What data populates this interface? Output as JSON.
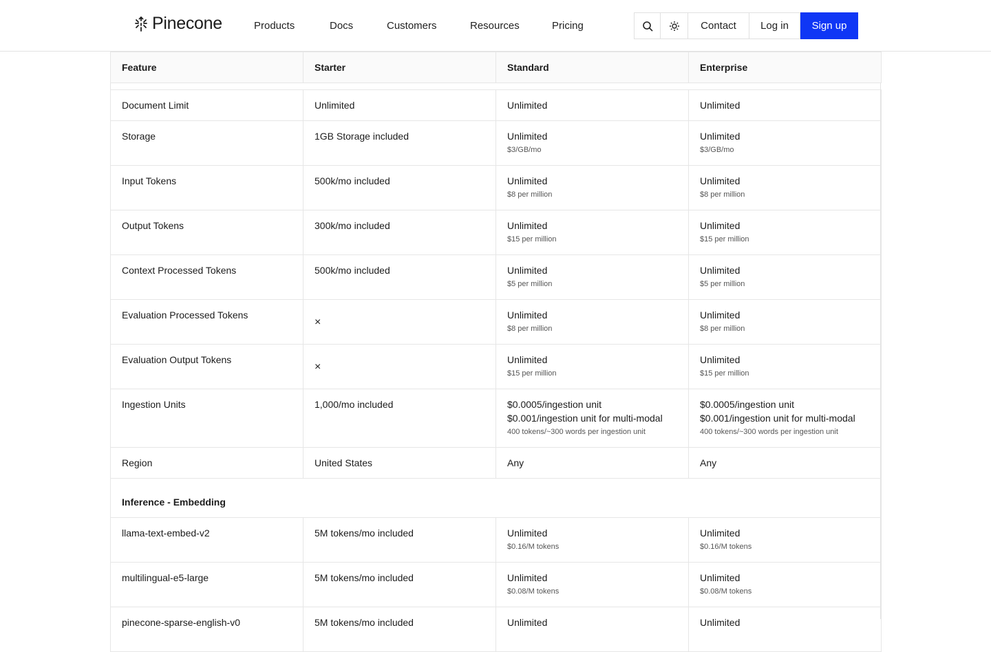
{
  "header": {
    "brand": "Pinecone",
    "nav": [
      "Products",
      "Docs",
      "Customers",
      "Resources",
      "Pricing"
    ],
    "contact": "Contact",
    "login": "Log in",
    "signup": "Sign up",
    "accent": "#0f36f5"
  },
  "table": {
    "columns": [
      "Feature",
      "Starter",
      "Standard",
      "Enterprise"
    ],
    "rows": [
      {
        "h": 45,
        "cells": [
          {
            "t": [
              "Document Limit"
            ]
          },
          {
            "t": [
              "Unlimited"
            ]
          },
          {
            "t": [
              "Unlimited"
            ]
          },
          {
            "t": [
              "Unlimited"
            ]
          }
        ]
      },
      {
        "h": 65,
        "cells": [
          {
            "t": [
              "Storage"
            ]
          },
          {
            "t": [
              "1GB Storage included"
            ]
          },
          {
            "t": [
              "Unlimited"
            ],
            "s": "$3/GB/mo"
          },
          {
            "t": [
              "Unlimited"
            ],
            "s": "$3/GB/mo"
          }
        ]
      },
      {
        "h": 65,
        "cells": [
          {
            "t": [
              "Input Tokens"
            ]
          },
          {
            "t": [
              "500k/mo included"
            ]
          },
          {
            "t": [
              "Unlimited"
            ],
            "s": "$8 per million"
          },
          {
            "t": [
              "Unlimited"
            ],
            "s": "$8 per million"
          }
        ]
      },
      {
        "h": 65,
        "cells": [
          {
            "t": [
              "Output Tokens"
            ]
          },
          {
            "t": [
              "300k/mo included"
            ]
          },
          {
            "t": [
              "Unlimited"
            ],
            "s": "$15 per million"
          },
          {
            "t": [
              "Unlimited"
            ],
            "s": "$15 per million"
          }
        ]
      },
      {
        "h": 65,
        "cells": [
          {
            "t": [
              "Context Processed Tokens"
            ]
          },
          {
            "t": [
              "500k/mo included"
            ]
          },
          {
            "t": [
              "Unlimited"
            ],
            "s": "$5 per million"
          },
          {
            "t": [
              "Unlimited"
            ],
            "s": "$5 per million"
          }
        ]
      },
      {
        "h": 65,
        "cells": [
          {
            "t": [
              "Evaluation Processed Tokens"
            ]
          },
          {
            "x": "×"
          },
          {
            "t": [
              "Unlimited"
            ],
            "s": "$8 per million"
          },
          {
            "t": [
              "Unlimited"
            ],
            "s": "$8 per million"
          }
        ]
      },
      {
        "h": 65,
        "cells": [
          {
            "t": [
              "Evaluation Output Tokens"
            ]
          },
          {
            "x": "×"
          },
          {
            "t": [
              "Unlimited"
            ],
            "s": "$15 per million"
          },
          {
            "t": [
              "Unlimited"
            ],
            "s": "$15 per million"
          }
        ]
      },
      {
        "h": 85,
        "cells": [
          {
            "t": [
              "Ingestion Units"
            ]
          },
          {
            "t": [
              "1,000/mo included"
            ]
          },
          {
            "t": [
              "$0.0005/ingestion unit",
              "$0.001/ingestion unit for multi-modal"
            ],
            "s": "400 tokens/~300 words per ingestion unit"
          },
          {
            "t": [
              "$0.0005/ingestion unit",
              "$0.001/ingestion unit for multi-modal"
            ],
            "s": "400 tokens/~300 words per ingestion unit"
          }
        ]
      },
      {
        "h": 45,
        "cells": [
          {
            "t": [
              "Region"
            ]
          },
          {
            "t": [
              "United States"
            ]
          },
          {
            "t": [
              "Any"
            ]
          },
          {
            "t": [
              "Any"
            ]
          }
        ]
      },
      {
        "section": "Inference - Embedding"
      },
      {
        "h": 65,
        "cells": [
          {
            "t": [
              "llama-text-embed-v2"
            ]
          },
          {
            "t": [
              "5M tokens/mo included"
            ]
          },
          {
            "t": [
              "Unlimited"
            ],
            "s": "$0.16/M tokens"
          },
          {
            "t": [
              "Unlimited"
            ],
            "s": "$0.16/M tokens"
          }
        ]
      },
      {
        "h": 65,
        "cells": [
          {
            "t": [
              "multilingual-e5-large"
            ]
          },
          {
            "t": [
              "5M tokens/mo included"
            ]
          },
          {
            "t": [
              "Unlimited"
            ],
            "s": "$0.08/M tokens"
          },
          {
            "t": [
              "Unlimited"
            ],
            "s": "$0.08/M tokens"
          }
        ]
      },
      {
        "h": 65,
        "cells": [
          {
            "t": [
              "pinecone-sparse-english-v0"
            ]
          },
          {
            "t": [
              "5M tokens/mo included"
            ]
          },
          {
            "t": [
              "Unlimited"
            ]
          },
          {
            "t": [
              "Unlimited"
            ]
          }
        ]
      }
    ]
  }
}
